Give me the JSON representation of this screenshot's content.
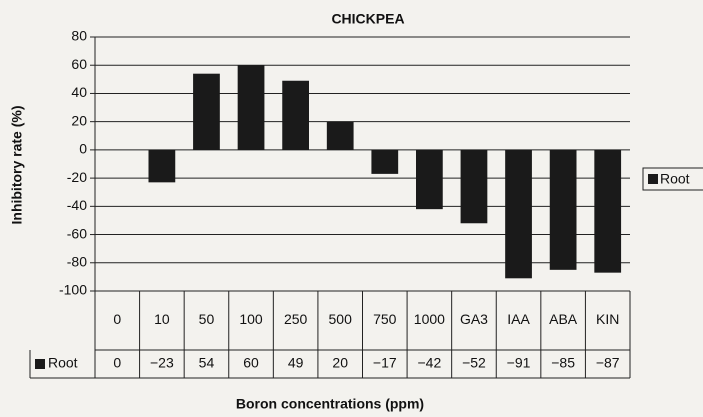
{
  "chart_data": {
    "type": "bar",
    "title": "CHICKPEA",
    "x_label": "Boron concentrations (ppm)",
    "y_label": "Inhibitory rate (%)",
    "categories": [
      "0",
      "10",
      "50",
      "100",
      "250",
      "500",
      "750",
      "1000",
      "GA3",
      "IAA",
      "ABA",
      "KIN"
    ],
    "series": [
      {
        "name": "Root",
        "color": "#1a1a1a",
        "values": [
          0,
          -23,
          54,
          60,
          49,
          20,
          -17,
          -42,
          -52,
          -91,
          -85,
          -87
        ],
        "value_labels": [
          "0",
          "−23",
          "54",
          "60",
          "49",
          "20",
          "−17",
          "−42",
          "−52",
          "−91",
          "−85",
          "−87"
        ]
      }
    ],
    "ylim": [
      -100,
      80
    ],
    "yticks": [
      -100,
      -80,
      -60,
      -40,
      -20,
      0,
      20,
      40,
      60,
      80
    ],
    "grid": true,
    "legend": "right"
  }
}
